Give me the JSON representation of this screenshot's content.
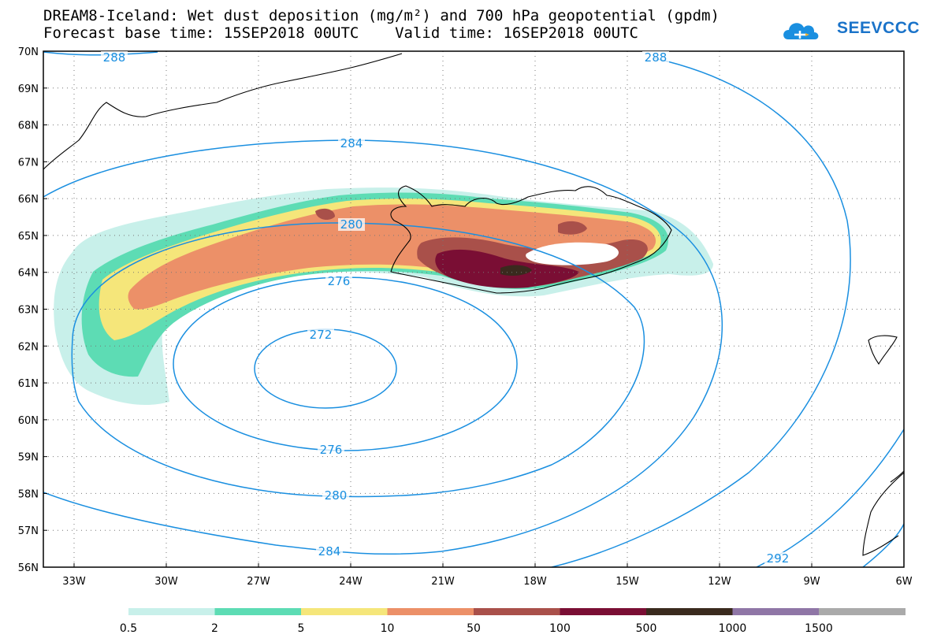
{
  "title": {
    "line1": "DREAM8-Iceland: Wet dust deposition (mg/m²) and 700 hPa geopotential (gpdm)",
    "line2": "Forecast base time: 15SEP2018 00UTC    Valid time: 16SEP2018 00UTC"
  },
  "logo": {
    "text": "SEEVCCC",
    "icon": "cloud-logo-icon"
  },
  "map": {
    "lat_labels": [
      "70N",
      "69N",
      "68N",
      "67N",
      "66N",
      "65N",
      "64N",
      "63N",
      "62N",
      "61N",
      "60N",
      "59N",
      "58N",
      "57N",
      "56N"
    ],
    "lon_labels": [
      "33W",
      "30W",
      "27W",
      "24W",
      "21W",
      "18W",
      "15W",
      "12W",
      "9W",
      "6W"
    ],
    "lat_range": [
      56,
      70
    ],
    "lon_range": [
      -34,
      -6
    ],
    "grid": "dotted",
    "contour_color": "#1a8fe0",
    "contour_labels": [
      {
        "text": "288",
        "value": 288
      },
      {
        "text": "288",
        "value": 288
      },
      {
        "text": "284",
        "value": 284
      },
      {
        "text": "280",
        "value": 280
      },
      {
        "text": "276",
        "value": 276
      },
      {
        "text": "272",
        "value": 272
      },
      {
        "text": "276",
        "value": 276
      },
      {
        "text": "280",
        "value": 280
      },
      {
        "text": "284",
        "value": 284
      },
      {
        "text": "292",
        "value": 292
      }
    ]
  },
  "legend": {
    "labels": [
      "0.5",
      "2",
      "5",
      "10",
      "50",
      "100",
      "500",
      "1000",
      "1500"
    ],
    "colors": [
      "#c8f0ea",
      "#5ddcb4",
      "#f5e67a",
      "#ec9068",
      "#a9504a",
      "#7a0e34",
      "#3a2a1e",
      "#8f76a6",
      "#aaaaaa"
    ]
  }
}
